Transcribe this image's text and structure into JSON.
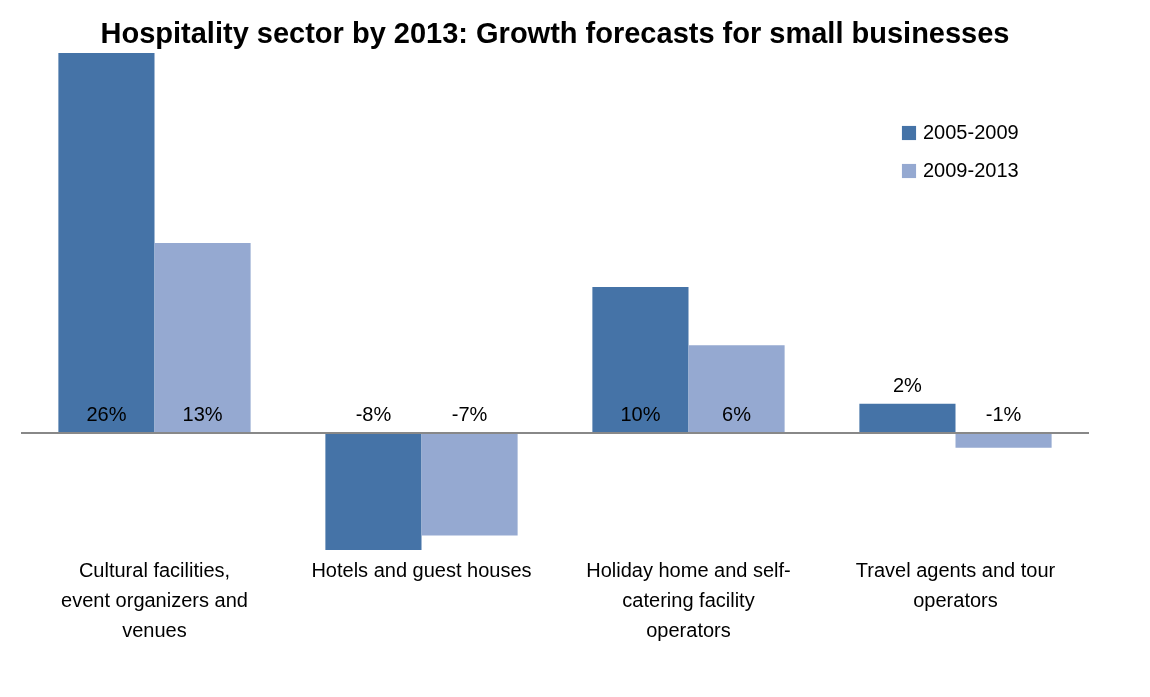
{
  "chart_data": {
    "type": "bar",
    "title": "Hospitality sector by 2013: Growth forecasts for small businesses",
    "categories": [
      "Cultural facilities, event organizers and venues",
      "Hotels and guest houses",
      "Holiday home and self-catering facility operators",
      "Travel agents and tour operators"
    ],
    "series": [
      {
        "name": "2005-2009",
        "color": "#4573a7",
        "values": [
          26,
          -8,
          10,
          2
        ],
        "value_labels": [
          "26%",
          "-8%",
          "10%",
          "2%"
        ]
      },
      {
        "name": "2009-2013",
        "color": "#95a9d1",
        "values": [
          13,
          -7,
          6,
          -1
        ],
        "value_labels": [
          "13%",
          "-7%",
          "6%",
          "-1%"
        ]
      }
    ],
    "legend": "top right",
    "grid": false
  }
}
